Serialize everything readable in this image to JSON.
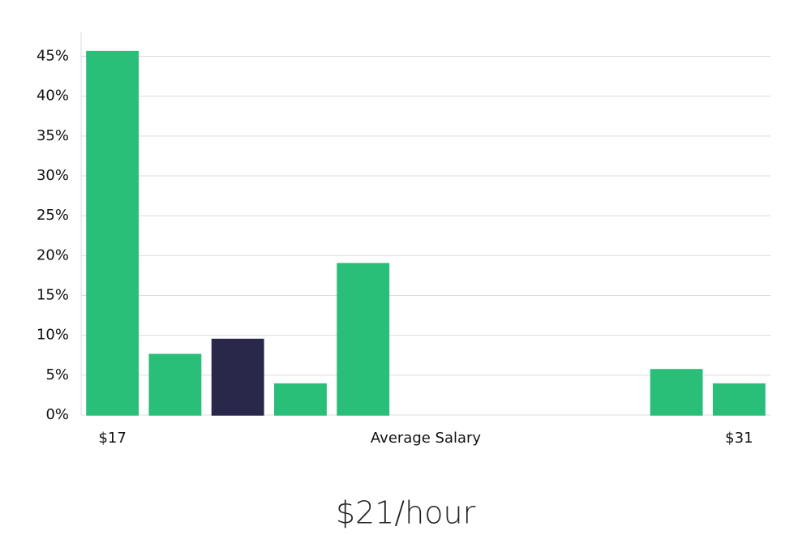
{
  "chart_data": {
    "type": "bar",
    "xlabel": "Average Salary",
    "annotation": "$21/hour",
    "categories": [
      "$17",
      null,
      null,
      null,
      null,
      null,
      null,
      null,
      null,
      null,
      "$31"
    ],
    "values": [
      45.6,
      7.6,
      9.5,
      3.9,
      19.0,
      0,
      0,
      0,
      0,
      5.7,
      3.9
    ],
    "colors": [
      "#29bf78",
      "#29bf78",
      "#29274a",
      "#29bf78",
      "#29bf78",
      "#29bf78",
      "#29bf78",
      "#29bf78",
      "#29bf78",
      "#29bf78",
      "#29bf78"
    ],
    "ylim": [
      0,
      48
    ],
    "yticks": [
      {
        "value": 0,
        "label": "0%"
      },
      {
        "value": 5,
        "label": "5%"
      },
      {
        "value": 10,
        "label": "10%"
      },
      {
        "value": 15,
        "label": "15%"
      },
      {
        "value": 20,
        "label": "20%"
      },
      {
        "value": 25,
        "label": "25%"
      },
      {
        "value": 30,
        "label": "30%"
      },
      {
        "value": 35,
        "label": "35%"
      },
      {
        "value": 40,
        "label": "40%"
      },
      {
        "value": 45,
        "label": "45%"
      }
    ],
    "grid": true
  }
}
